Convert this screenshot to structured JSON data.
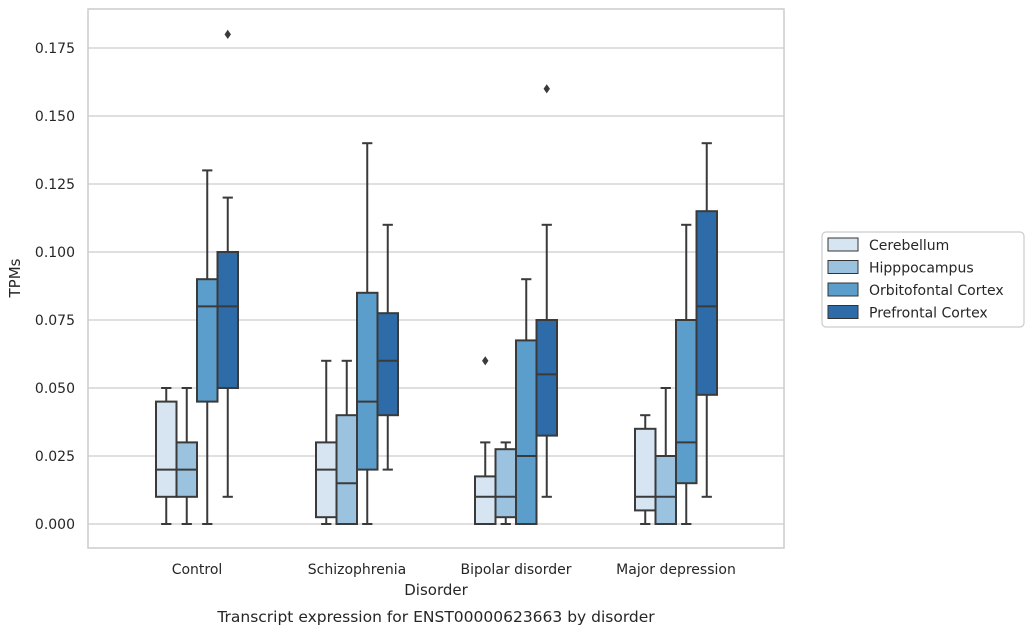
{
  "chart_data": {
    "type": "box",
    "xlabel": "Disorder",
    "ylabel": "TPMs",
    "caption": "Transcript expression for ENST00000623663 by disorder",
    "categories": [
      "Control",
      "Schizophrenia",
      "Bipolar disorder",
      "Major depression"
    ],
    "ylim": [
      -0.009,
      0.19
    ],
    "yticks": [
      "0.000",
      "0.025",
      "0.050",
      "0.075",
      "0.100",
      "0.125",
      "0.150",
      "0.175"
    ],
    "grid": true,
    "legend_position": "right",
    "series": [
      {
        "name": "Cerebellum",
        "color": "#d7e4f1",
        "boxes": [
          {
            "whisker_low": 0.0,
            "q1": 0.01,
            "median": 0.02,
            "q3": 0.045,
            "whisker_high": 0.05,
            "outliers": []
          },
          {
            "whisker_low": 0.0,
            "q1": 0.0025,
            "median": 0.02,
            "q3": 0.03,
            "whisker_high": 0.06,
            "outliers": []
          },
          {
            "whisker_low": 0.0,
            "q1": 0.0,
            "median": 0.01,
            "q3": 0.0175,
            "whisker_high": 0.03,
            "outliers": [
              0.06
            ]
          },
          {
            "whisker_low": 0.0,
            "q1": 0.005,
            "median": 0.01,
            "q3": 0.035,
            "whisker_high": 0.04,
            "outliers": []
          }
        ]
      },
      {
        "name": "Hipppocampus",
        "color": "#9bc3e0",
        "boxes": [
          {
            "whisker_low": 0.0,
            "q1": 0.01,
            "median": 0.02,
            "q3": 0.03,
            "whisker_high": 0.05,
            "outliers": []
          },
          {
            "whisker_low": 0.0,
            "q1": 0.0,
            "median": 0.015,
            "q3": 0.04,
            "whisker_high": 0.06,
            "outliers": []
          },
          {
            "whisker_low": 0.0,
            "q1": 0.0025,
            "median": 0.01,
            "q3": 0.0275,
            "whisker_high": 0.03,
            "outliers": []
          },
          {
            "whisker_low": 0.0,
            "q1": 0.0,
            "median": 0.01,
            "q3": 0.025,
            "whisker_high": 0.05,
            "outliers": []
          }
        ]
      },
      {
        "name": "Orbitofontal Cortex",
        "color": "#5b9dcb",
        "boxes": [
          {
            "whisker_low": 0.0,
            "q1": 0.045,
            "median": 0.08,
            "q3": 0.09,
            "whisker_high": 0.13,
            "outliers": []
          },
          {
            "whisker_low": 0.0,
            "q1": 0.02,
            "median": 0.045,
            "q3": 0.085,
            "whisker_high": 0.14,
            "outliers": []
          },
          {
            "whisker_low": 0.0,
            "q1": 0.0,
            "median": 0.025,
            "q3": 0.0675,
            "whisker_high": 0.09,
            "outliers": []
          },
          {
            "whisker_low": 0.0,
            "q1": 0.015,
            "median": 0.03,
            "q3": 0.075,
            "whisker_high": 0.11,
            "outliers": []
          }
        ]
      },
      {
        "name": "Prefrontal Cortex",
        "color": "#2d6ca8",
        "boxes": [
          {
            "whisker_low": 0.01,
            "q1": 0.05,
            "median": 0.08,
            "q3": 0.1,
            "whisker_high": 0.12,
            "outliers": [
              0.18
            ]
          },
          {
            "whisker_low": 0.02,
            "q1": 0.04,
            "median": 0.06,
            "q3": 0.0775,
            "whisker_high": 0.11,
            "outliers": []
          },
          {
            "whisker_low": 0.01,
            "q1": 0.0325,
            "median": 0.055,
            "q3": 0.075,
            "whisker_high": 0.11,
            "outliers": [
              0.16
            ]
          },
          {
            "whisker_low": 0.01,
            "q1": 0.0475,
            "median": 0.08,
            "q3": 0.115,
            "whisker_high": 0.14,
            "outliers": []
          }
        ]
      }
    ]
  }
}
